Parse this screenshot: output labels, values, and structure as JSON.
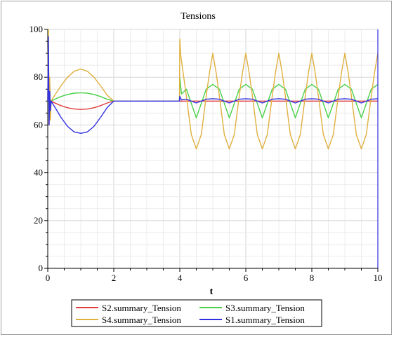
{
  "chart_data": {
    "type": "line",
    "title": "Tensions",
    "xlabel": "t",
    "ylabel": "",
    "xlim": [
      0,
      10
    ],
    "ylim": [
      0,
      100
    ],
    "x_ticks": [
      0,
      2,
      4,
      6,
      8,
      10
    ],
    "y_ticks": [
      0,
      20,
      40,
      60,
      80,
      100
    ],
    "grid": true,
    "legend_position": "bottom",
    "series": [
      {
        "name": "S2.summary_Tension",
        "color": "#e03c3c",
        "x": [
          0,
          0.02,
          0.04,
          0.06,
          0.08,
          0.1,
          0.2,
          0.4,
          0.6,
          0.8,
          1.0,
          1.2,
          1.4,
          1.6,
          1.8,
          2.0,
          4.0,
          10.0
        ],
        "y": [
          70,
          100,
          60,
          78,
          64,
          70,
          69.3,
          68.1,
          67.2,
          66.7,
          66.5,
          66.7,
          67.2,
          68.1,
          69.2,
          70,
          70,
          70
        ]
      },
      {
        "name": "S3.summary_Tension",
        "color": "#46d046",
        "x": [
          0,
          0.02,
          0.04,
          0.06,
          0.08,
          0.1,
          0.2,
          0.4,
          0.6,
          0.8,
          1.0,
          1.2,
          1.4,
          1.6,
          1.8,
          2.0,
          3.99,
          4.0,
          4.05,
          4.2,
          4.5,
          4.8,
          5.0,
          5.2,
          5.5,
          5.8,
          6.0,
          6.2,
          6.5,
          6.8,
          7.0,
          7.2,
          7.5,
          7.8,
          8.0,
          8.2,
          8.5,
          8.8,
          9.0,
          9.2,
          9.5,
          9.8,
          10.0
        ],
        "y": [
          70,
          100,
          62,
          76,
          66,
          70,
          70.7,
          71.9,
          72.8,
          73.3,
          73.5,
          73.3,
          72.8,
          71.9,
          70.8,
          70,
          70,
          80,
          73,
          75,
          63,
          75,
          77,
          75,
          63,
          75,
          77,
          75,
          63,
          75,
          77,
          75,
          63,
          75,
          77,
          75,
          63,
          75,
          77,
          75,
          63,
          75,
          77
        ]
      },
      {
        "name": "S4.summary_Tension",
        "color": "#e0b040",
        "x": [
          0,
          0.02,
          0.04,
          0.06,
          0.08,
          0.1,
          0.2,
          0.4,
          0.6,
          0.8,
          1.0,
          1.2,
          1.4,
          1.6,
          1.8,
          2.0,
          3.99,
          4.0,
          4.03,
          4.1,
          4.2,
          4.35,
          4.5,
          4.65,
          4.8,
          4.9,
          5.0,
          5.1,
          5.2,
          5.35,
          5.5,
          5.65,
          5.8,
          5.9,
          6.0,
          6.1,
          6.2,
          6.35,
          6.5,
          6.65,
          6.8,
          6.9,
          7.0,
          7.1,
          7.2,
          7.35,
          7.5,
          7.65,
          7.8,
          7.9,
          8.0,
          8.1,
          8.2,
          8.35,
          8.5,
          8.65,
          8.8,
          8.9,
          9.0,
          9.1,
          9.2,
          9.35,
          9.5,
          9.65,
          9.8,
          9.9,
          10.0
        ],
        "y": [
          70,
          100,
          64,
          80,
          62,
          70,
          72.2,
          76.4,
          80.0,
          82.5,
          83.4,
          82.5,
          80.0,
          76.4,
          72.5,
          70,
          70,
          96,
          89,
          82,
          72,
          56,
          50,
          56,
          72,
          82,
          90,
          82,
          72,
          56,
          50,
          56,
          72,
          82,
          90,
          82,
          72,
          56,
          50,
          56,
          72,
          82,
          90,
          82,
          72,
          56,
          50,
          56,
          72,
          82,
          90,
          82,
          72,
          56,
          50,
          56,
          72,
          82,
          90,
          82,
          72,
          56,
          50,
          56,
          72,
          82,
          90
        ]
      },
      {
        "name": "S1.summary_Tension",
        "color": "#3030e0",
        "x": [
          0,
          0.02,
          0.04,
          0.06,
          0.08,
          0.1,
          0.2,
          0.4,
          0.6,
          0.8,
          1.0,
          1.2,
          1.4,
          1.6,
          1.8,
          2.0,
          3.99,
          4.0,
          4.05,
          4.2,
          4.5,
          4.8,
          5.0,
          5.2,
          5.5,
          5.8,
          6.0,
          6.2,
          6.5,
          6.8,
          7.0,
          7.2,
          7.5,
          7.8,
          8.0,
          8.2,
          8.5,
          8.8,
          9.0,
          9.2,
          9.5,
          9.8,
          10.0
        ],
        "y": [
          70,
          97,
          60,
          74,
          66,
          70,
          67.8,
          63.2,
          59.4,
          57.1,
          56.5,
          57.1,
          59.4,
          63.2,
          67.3,
          70,
          70,
          72,
          70.5,
          70.8,
          69.2,
          70.8,
          71,
          70.8,
          69.2,
          70.8,
          71,
          70.8,
          69.2,
          70.8,
          71,
          70.8,
          69.2,
          70.8,
          71,
          70.8,
          69.2,
          70.8,
          71,
          70.8,
          69.2,
          70.8,
          71
        ]
      }
    ]
  }
}
